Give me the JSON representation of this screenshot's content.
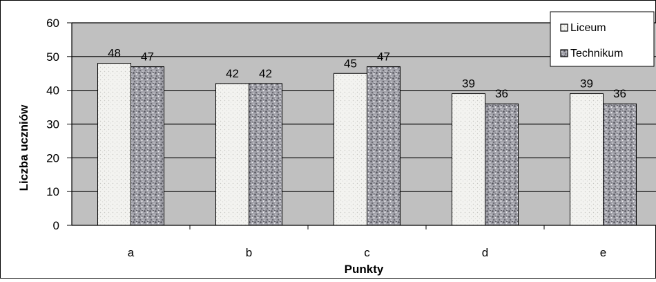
{
  "chart_data": {
    "type": "bar",
    "xlabel": "Punkty",
    "ylabel": "Liczba uczniów",
    "categories": [
      "a",
      "b",
      "c",
      "d",
      "e"
    ],
    "series": [
      {
        "name": "Liceum",
        "values": [
          48,
          42,
          45,
          39,
          39
        ],
        "pattern": "light-dotted"
      },
      {
        "name": "Technikum",
        "values": [
          47,
          42,
          47,
          36,
          36
        ],
        "pattern": "dark-speckled"
      }
    ],
    "ylim": [
      0,
      60
    ],
    "yticks": [
      "0",
      "10",
      "20",
      "30",
      "40",
      "50",
      "60"
    ],
    "grid": true,
    "legend_position": "top-right",
    "colors": {
      "plot_background": "#c0c0c0",
      "liceum_fill": "#f2f2ef",
      "technikum_fill": "#8c8c94",
      "gridline": "#000000",
      "border": "#000000"
    }
  }
}
